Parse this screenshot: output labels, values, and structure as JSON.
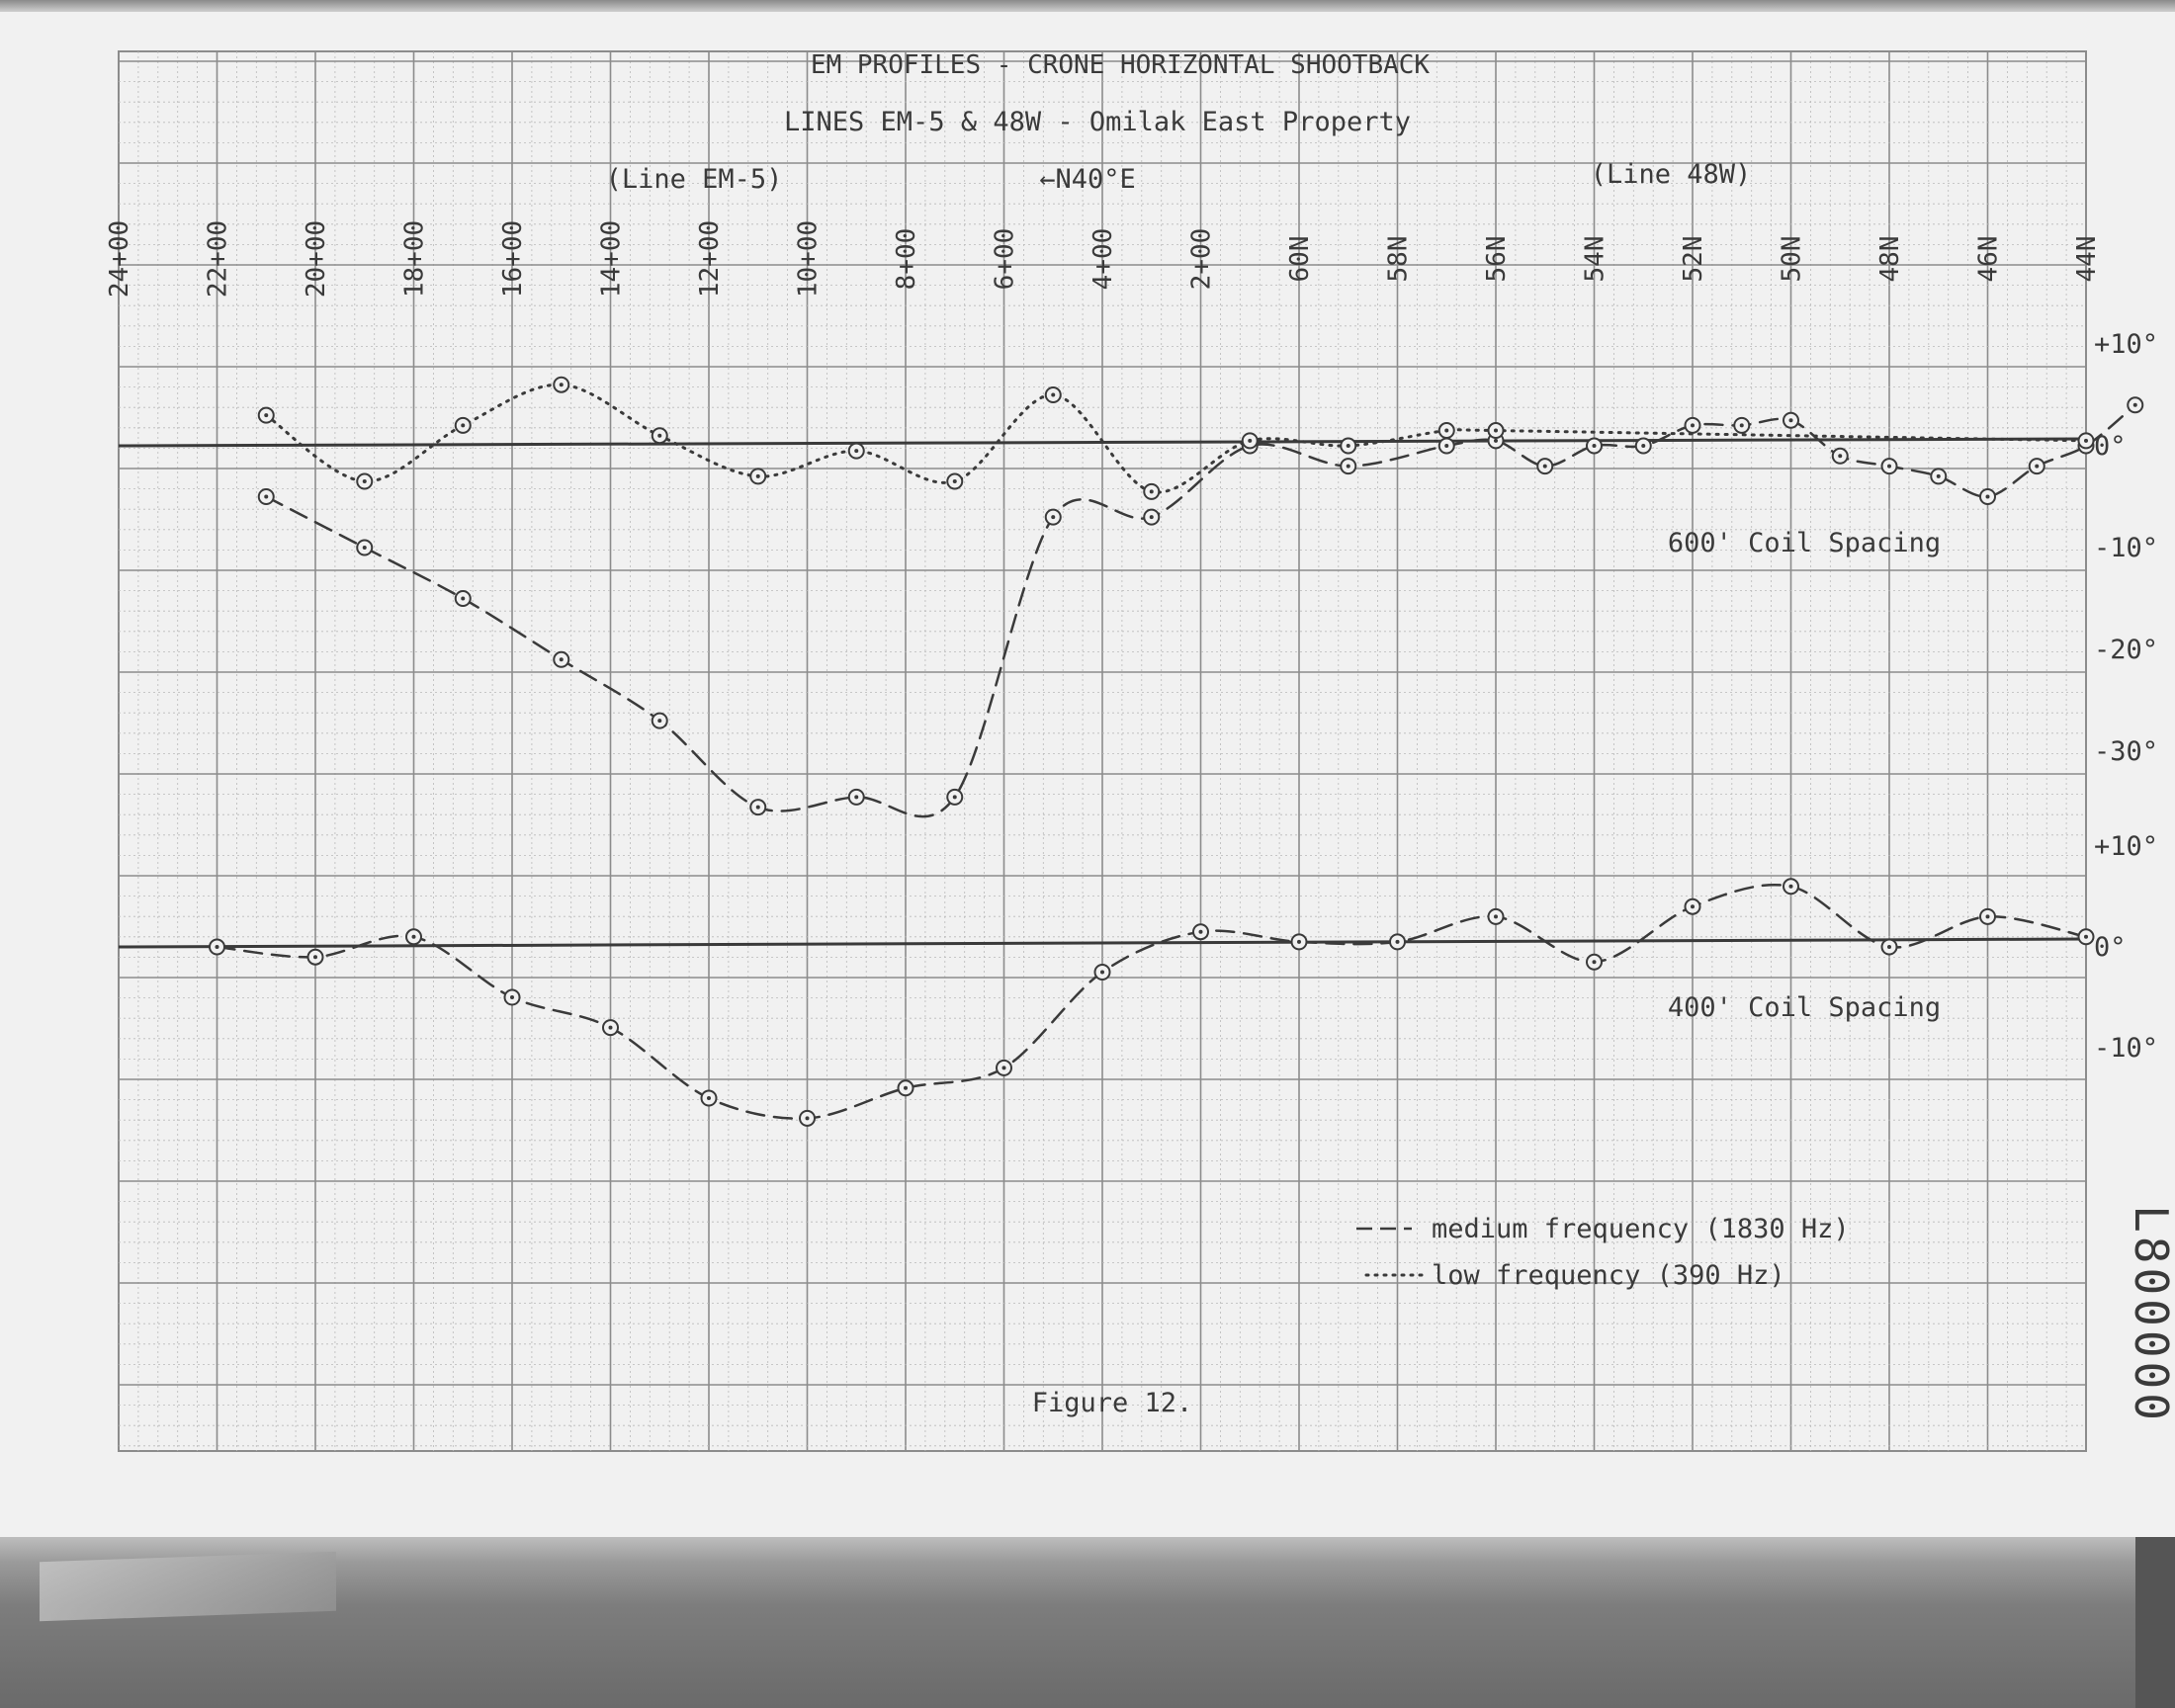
{
  "chart_data": [
    {
      "type": "line",
      "title": "EM PROFILES - CRONE HORIZONTAL SHOOTBACK",
      "subtitle": "LINES EM-5 & 48W - Omilak East Property",
      "panel_label": "600' Coil Spacing",
      "x_ticks": [
        "24+00",
        "22+00",
        "20+00",
        "18+00",
        "16+00",
        "14+00",
        "12+00",
        "10+00",
        "8+00",
        "6+00",
        "4+00",
        "2+00",
        "60N",
        "58N",
        "56N",
        "54N",
        "52N",
        "50N",
        "48N",
        "46N",
        "44N"
      ],
      "y_ticks": [
        "+10°",
        "0°",
        "-10°",
        "-20°",
        "-30°"
      ],
      "ylim": [
        -37,
        13
      ],
      "series": [
        {
          "name": "medium frequency (1830 Hz)",
          "style": "dashed",
          "points": [
            [
              1.5,
              -5
            ],
            [
              2.5,
              -10
            ],
            [
              3.5,
              -15
            ],
            [
              4.5,
              -21
            ],
            [
              5.5,
              -27
            ],
            [
              6.5,
              -35.5
            ],
            [
              7.5,
              -34.5
            ],
            [
              8.5,
              -34.5
            ],
            [
              9.5,
              -7
            ],
            [
              10.5,
              -7
            ],
            [
              11.5,
              0
            ],
            [
              12.5,
              -2
            ],
            [
              13.5,
              0
            ],
            [
              14,
              0.5
            ],
            [
              14.5,
              -2
            ],
            [
              15,
              0
            ],
            [
              15.5,
              0
            ],
            [
              16,
              2
            ],
            [
              16.5,
              2
            ],
            [
              17,
              2.5
            ],
            [
              17.5,
              -1
            ],
            [
              18,
              -2
            ],
            [
              18.5,
              -3
            ],
            [
              19,
              -5
            ],
            [
              19.5,
              -2
            ],
            [
              20,
              0
            ],
            [
              20.5,
              4
            ]
          ]
        },
        {
          "name": "low frequency (390 Hz)",
          "style": "dotted",
          "points": [
            [
              1.5,
              3
            ],
            [
              2.5,
              -3.5
            ],
            [
              3.5,
              2
            ],
            [
              4.5,
              6
            ],
            [
              5.5,
              1
            ],
            [
              6.5,
              -3
            ],
            [
              7.5,
              -0.5
            ],
            [
              8.5,
              -3.5
            ],
            [
              9.5,
              5
            ],
            [
              10.5,
              -4.5
            ],
            [
              11.5,
              0.5
            ],
            [
              12.5,
              0
            ],
            [
              13.5,
              1.5
            ],
            [
              14,
              1.5
            ],
            [
              20,
              0.5
            ]
          ]
        }
      ]
    },
    {
      "type": "line",
      "panel_label": "400' Coil Spacing",
      "y_ticks": [
        "+10°",
        "0°",
        "-10°"
      ],
      "ylim": [
        -18,
        12
      ],
      "series": [
        {
          "name": "medium frequency (1830 Hz)",
          "style": "dashed",
          "points": [
            [
              1,
              0
            ],
            [
              2,
              -1
            ],
            [
              3,
              1
            ],
            [
              4,
              -5
            ],
            [
              5,
              -8
            ],
            [
              6,
              -15
            ],
            [
              7,
              -17
            ],
            [
              8,
              -14
            ],
            [
              9,
              -12
            ],
            [
              10,
              -2.5
            ],
            [
              11,
              1.5
            ],
            [
              12,
              0.5
            ],
            [
              13,
              0.5
            ],
            [
              14,
              3
            ],
            [
              15,
              -1.5
            ],
            [
              16,
              4
            ],
            [
              17,
              6
            ],
            [
              18,
              0
            ],
            [
              19,
              3
            ],
            [
              20,
              1
            ]
          ]
        }
      ]
    }
  ],
  "header": {
    "title": "EM PROFILES - CRONE HORIZONTAL SHOOTBACK",
    "subtitle": "LINES EM-5 & 48W - Omilak East Property",
    "line_left": "(Line EM-5)",
    "direction": "←N40°E",
    "line_right": "(Line 48W)"
  },
  "legend": {
    "medium": "medium frequency (1830 Hz)",
    "low": "low frequency (390 Hz)",
    "position": "lower-right"
  },
  "caption": "Figure 12.",
  "stamp": "L800000",
  "colors": {
    "ink": "#3a3a3a",
    "grid_major": "#8c8c8c",
    "grid_minor": "#b9b9b9",
    "paper": "#f1f1f1"
  }
}
